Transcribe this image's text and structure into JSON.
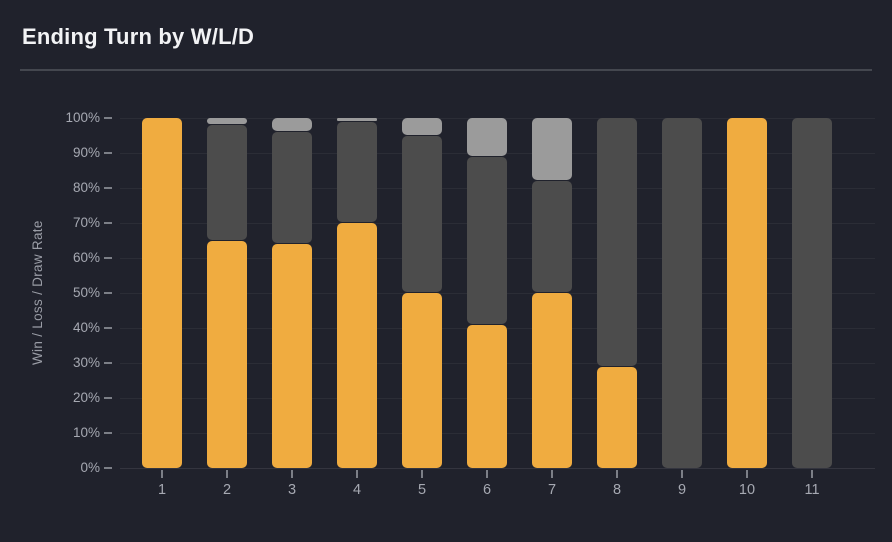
{
  "header": {
    "title": "Ending Turn by W/L/D"
  },
  "chart_data": {
    "type": "bar",
    "stacked": true,
    "title": "Ending Turn by W/L/D",
    "xlabel": "",
    "ylabel": "Win / Loss / Draw Rate",
    "categories": [
      "1",
      "2",
      "3",
      "4",
      "5",
      "6",
      "7",
      "8",
      "9",
      "10",
      "11"
    ],
    "series": [
      {
        "name": "Win",
        "color": "#F0AC40",
        "values": [
          100,
          65,
          64,
          70,
          50,
          41,
          50,
          29,
          0,
          100,
          0
        ]
      },
      {
        "name": "Loss",
        "color": "#4C4C4C",
        "values": [
          0,
          33,
          32,
          29,
          45,
          48,
          32,
          71,
          100,
          0,
          100
        ]
      },
      {
        "name": "Draw",
        "color": "#9B9B9B",
        "values": [
          0,
          2,
          4,
          1,
          5,
          11,
          18,
          0,
          0,
          0,
          0
        ]
      }
    ],
    "ylim": [
      0,
      100
    ],
    "y_ticks": [
      "0%",
      "10%",
      "20%",
      "30%",
      "40%",
      "50%",
      "60%",
      "70%",
      "80%",
      "90%",
      "100%"
    ],
    "grid": true,
    "legend": "none"
  },
  "colors": {
    "background": "#20222C",
    "divider": "#44474F",
    "axis_text": "#A6A9B2",
    "tick": "#7C7F87",
    "win": "#F0AC40",
    "loss": "#4C4C4C",
    "draw": "#9B9B9B"
  }
}
